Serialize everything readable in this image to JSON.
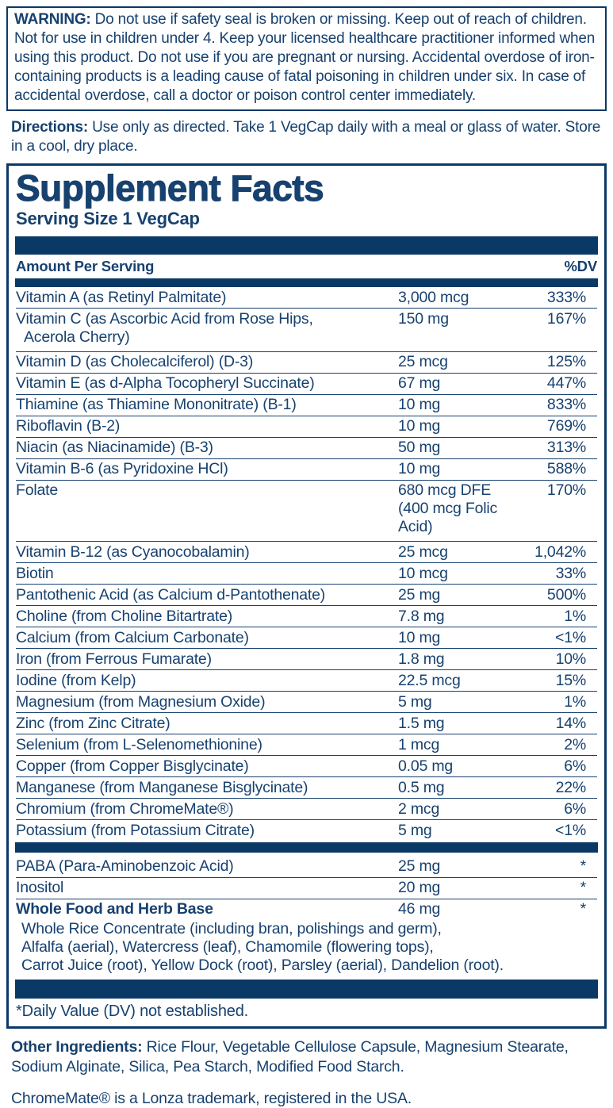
{
  "colors": {
    "navy_text": "#17416f",
    "navy_bar": "#0b3966"
  },
  "warning": {
    "label": "WARNING:",
    "text": "Do not use if safety seal is broken or missing. Keep out of reach of children. Not for use in children under 4. Keep your licensed healthcare practitioner informed when using this product. Do not use if you are pregnant or nursing. Accidental overdose of iron-containing products is a leading cause of fatal poisoning in children under six. In case of accidental overdose, call a doctor or poison control center immediately."
  },
  "directions": {
    "label": "Directions:",
    "text": "Use only as directed. Take 1 VegCap daily with a meal or glass of water. Store in a cool, dry place."
  },
  "panel": {
    "title": "Supplement Facts",
    "serving_size": "Serving Size 1 VegCap",
    "header": {
      "amount_label": "Amount Per Serving",
      "dv_label": "%DV"
    },
    "rows": [
      {
        "name": "Vitamin A (as Retinyl Palmitate)",
        "amount": "3,000 mcg",
        "dv": "333%"
      },
      {
        "name": "Vitamin C (as Ascorbic Acid from Rose Hips,",
        "name2": "Acerola Cherry)",
        "amount": "150 mg",
        "dv": "167%"
      },
      {
        "name": "Vitamin D (as Cholecalciferol) (D-3)",
        "amount": "25 mcg",
        "dv": "125%"
      },
      {
        "name": "Vitamin E (as d-Alpha Tocopheryl Succinate)",
        "amount": "67 mg",
        "dv": "447%"
      },
      {
        "name": "Thiamine (as Thiamine Mononitrate) (B-1)",
        "amount": "10 mg",
        "dv": "833%"
      },
      {
        "name": "Riboflavin (B-2)",
        "amount": "10 mg",
        "dv": "769%"
      },
      {
        "name": "Niacin (as Niacinamide) (B-3)",
        "amount": "50 mg",
        "dv": "313%"
      },
      {
        "name": "Vitamin B-6 (as Pyridoxine HCl)",
        "amount": "10 mg",
        "dv": "588%"
      },
      {
        "name": "Folate",
        "amount": "680 mcg DFE",
        "amount2": "(400 mcg Folic Acid)",
        "dv": "170%"
      },
      {
        "name": "Vitamin B-12 (as Cyanocobalamin)",
        "amount": "25 mcg",
        "dv": "1,042%"
      },
      {
        "name": "Biotin",
        "amount": "10 mcg",
        "dv": "33%"
      },
      {
        "name": "Pantothenic Acid (as Calcium d-Pantothenate)",
        "amount": "25 mg",
        "dv": "500%"
      },
      {
        "name": "Choline (from Choline Bitartrate)",
        "amount": "7.8 mg",
        "dv": "1%"
      },
      {
        "name": "Calcium (from Calcium Carbonate)",
        "amount": "10 mg",
        "dv": "<1%"
      },
      {
        "name": "Iron (from Ferrous Fumarate)",
        "amount": "1.8 mg",
        "dv": "10%"
      },
      {
        "name": "Iodine (from Kelp)",
        "amount": "22.5 mcg",
        "dv": "15%"
      },
      {
        "name": "Magnesium (from Magnesium Oxide)",
        "amount": "5 mg",
        "dv": "1%"
      },
      {
        "name": "Zinc (from Zinc Citrate)",
        "amount": "1.5 mg",
        "dv": "14%"
      },
      {
        "name": "Selenium (from L-Selenomethionine)",
        "amount": "1 mcg",
        "dv": "2%"
      },
      {
        "name": "Copper (from Copper Bisglycinate)",
        "amount": "0.05 mg",
        "dv": "6%"
      },
      {
        "name": "Manganese (from Manganese Bisglycinate)",
        "amount": "0.5 mg",
        "dv": "22%"
      },
      {
        "name": "Chromium (from ChromeMate®)",
        "amount": "2 mcg",
        "dv": "6%"
      },
      {
        "name": "Potassium (from Potassium Citrate)",
        "amount": "5 mg",
        "dv": "<1%"
      }
    ],
    "star_rows": [
      {
        "name": "PABA (Para-Aminobenzoic Acid)",
        "amount": "25 mg",
        "dv": "*"
      },
      {
        "name": "Inositol",
        "amount": "20 mg",
        "dv": "*"
      },
      {
        "name": "Whole Food and Herb Base",
        "amount": "46 mg",
        "dv": "*",
        "bold": true,
        "sub": [
          "Whole Rice Concentrate (including bran, polishings and germ),",
          "Alfalfa (aerial), Watercress (leaf), Chamomile (flowering tops),",
          "Carrot Juice (root), Yellow Dock (root), Parsley (aerial), Dandelion (root)."
        ]
      }
    ],
    "footnote": "*Daily Value (DV) not established."
  },
  "other_ingredients": {
    "label": "Other Ingredients:",
    "text": "Rice Flour, Vegetable Cellulose Capsule, Magnesium Stearate, Sodium Alginate, Silica, Pea Starch, Modified Food Starch."
  },
  "trademark": "ChromeMate® is a Lonza trademark, registered in the USA."
}
